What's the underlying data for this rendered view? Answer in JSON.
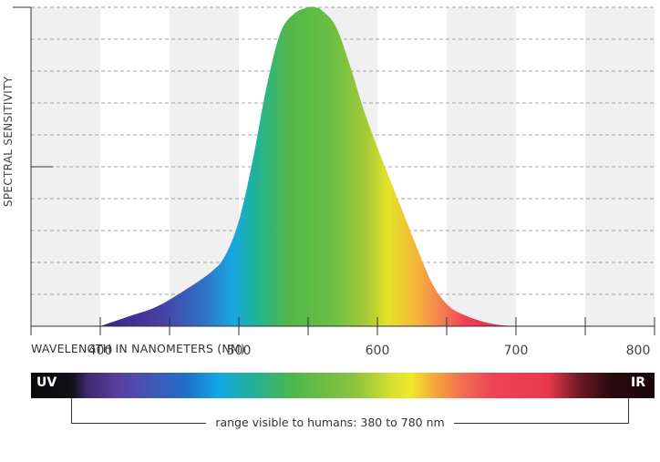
{
  "chart_data": {
    "type": "area",
    "ylabel": "SPECTRAL SENSITIVITY",
    "xlabel": "WAVELENGTH IN NANOMETERS (NM)",
    "x_ticks": [
      "400",
      "500",
      "600",
      "700",
      "800"
    ],
    "xlim": [
      350,
      800
    ],
    "ylim": [
      0,
      1
    ],
    "grid": "horizontal dashed",
    "series": [
      {
        "x": [
          400,
          420,
          440,
          460,
          480,
          490,
          500,
          510,
          520,
          530,
          540,
          550,
          555,
          560,
          570,
          580,
          590,
          600,
          610,
          620,
          630,
          640,
          650,
          660,
          680,
          700,
          720
        ],
        "values": [
          0.0,
          0.03,
          0.06,
          0.11,
          0.17,
          0.22,
          0.33,
          0.52,
          0.75,
          0.92,
          0.98,
          1.0,
          1.0,
          0.99,
          0.94,
          0.82,
          0.68,
          0.56,
          0.45,
          0.34,
          0.23,
          0.13,
          0.07,
          0.04,
          0.01,
          0.0,
          0.0
        ]
      }
    ]
  },
  "spectrum_bar": {
    "left_label": "UV",
    "right_label": "IR"
  },
  "range_note": "range visible to humans: 380 to 780 nm",
  "colors": {
    "band_grey": "#f0f0f0",
    "grid": "#888888",
    "axis": "#333333"
  }
}
